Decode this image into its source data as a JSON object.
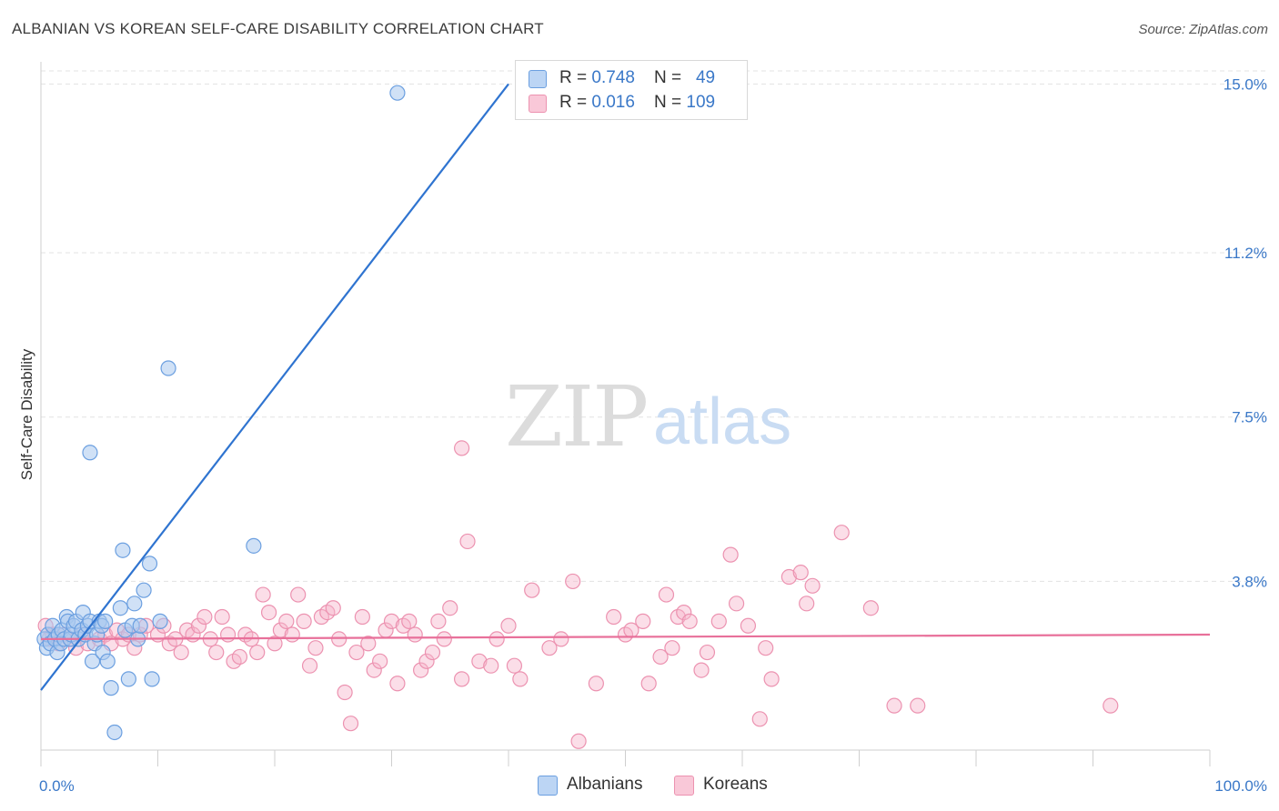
{
  "title": "ALBANIAN VS KOREAN SELF-CARE DISABILITY CORRELATION CHART",
  "source": "Source: ZipAtlas.com",
  "watermark": {
    "zip": "ZIP",
    "atlas": "atlas"
  },
  "legend_top": [
    {
      "r_label": "R = ",
      "r_value": "0.748",
      "n_label": "N = ",
      "n_value": "49"
    },
    {
      "r_label": "R = ",
      "r_value": "0.016",
      "n_label": "N = ",
      "n_value": "109"
    }
  ],
  "colors": {
    "albanian_fill": "#a9c8ef",
    "albanian_stroke": "#6b9fe0",
    "albanian_line": "#2f74d0",
    "korean_fill": "#f6b6cb",
    "korean_stroke": "#ec92b0",
    "korean_line": "#e8709a",
    "value_text": "#3a78c8",
    "grid": "#e3e3e3"
  },
  "chart_data": {
    "type": "scatter",
    "title": "ALBANIAN VS KOREAN SELF-CARE DISABILITY CORRELATION CHART",
    "xlabel": "",
    "ylabel": "Self-Care Disability",
    "x_tick_labels": [
      "0.0%",
      "100.0%"
    ],
    "y_tick_labels": [
      "3.8%",
      "7.5%",
      "11.2%",
      "15.0%"
    ],
    "y_ticks": [
      3.8,
      7.5,
      11.2,
      15.0
    ],
    "xlim": [
      0,
      100
    ],
    "ylim": [
      0,
      15.5
    ],
    "grid": true,
    "legend_position": "bottom",
    "series": [
      {
        "name": "Albanians",
        "r": 0.748,
        "n": 49,
        "trend": {
          "x0": 0,
          "y0": 1.35,
          "x1": 40,
          "y1": 15.0
        },
        "points": [
          [
            0.3,
            2.5
          ],
          [
            0.5,
            2.3
          ],
          [
            0.6,
            2.6
          ],
          [
            0.8,
            2.4
          ],
          [
            1.0,
            2.8
          ],
          [
            1.2,
            2.5
          ],
          [
            1.4,
            2.2
          ],
          [
            1.5,
            2.6
          ],
          [
            1.7,
            2.4
          ],
          [
            1.8,
            2.7
          ],
          [
            2.0,
            2.5
          ],
          [
            2.2,
            3.0
          ],
          [
            2.3,
            2.9
          ],
          [
            2.5,
            2.5
          ],
          [
            2.6,
            2.6
          ],
          [
            2.8,
            2.8
          ],
          [
            3.0,
            2.9
          ],
          [
            3.2,
            2.5
          ],
          [
            3.5,
            2.7
          ],
          [
            3.6,
            3.1
          ],
          [
            3.8,
            2.6
          ],
          [
            4.0,
            2.8
          ],
          [
            4.2,
            2.9
          ],
          [
            4.4,
            2.0
          ],
          [
            4.6,
            2.4
          ],
          [
            4.8,
            2.6
          ],
          [
            5.0,
            2.9
          ],
          [
            5.2,
            2.8
          ],
          [
            5.3,
            2.2
          ],
          [
            5.5,
            2.9
          ],
          [
            5.7,
            2.0
          ],
          [
            6.0,
            1.4
          ],
          [
            6.3,
            0.4
          ],
          [
            6.8,
            3.2
          ],
          [
            7.0,
            4.5
          ],
          [
            7.2,
            2.7
          ],
          [
            7.5,
            1.6
          ],
          [
            7.8,
            2.8
          ],
          [
            8.0,
            3.3
          ],
          [
            8.3,
            2.5
          ],
          [
            8.5,
            2.8
          ],
          [
            8.8,
            3.6
          ],
          [
            9.3,
            4.2
          ],
          [
            9.5,
            1.6
          ],
          [
            10.2,
            2.9
          ],
          [
            10.9,
            8.6
          ],
          [
            18.2,
            4.6
          ],
          [
            4.2,
            6.7
          ],
          [
            30.5,
            14.8
          ]
        ]
      },
      {
        "name": "Koreans",
        "r": 0.016,
        "n": 109,
        "trend": {
          "x0": 0,
          "y0": 2.5,
          "x1": 100,
          "y1": 2.6
        },
        "points": [
          [
            0.4,
            2.8
          ],
          [
            0.7,
            2.5
          ],
          [
            1.0,
            2.6
          ],
          [
            1.5,
            2.4
          ],
          [
            2.0,
            2.6
          ],
          [
            2.5,
            2.5
          ],
          [
            3.0,
            2.3
          ],
          [
            3.5,
            2.6
          ],
          [
            4.0,
            2.4
          ],
          [
            5.0,
            2.5
          ],
          [
            5.5,
            2.6
          ],
          [
            6.0,
            2.4
          ],
          [
            6.5,
            2.7
          ],
          [
            7.0,
            2.5
          ],
          [
            7.5,
            2.6
          ],
          [
            8.0,
            2.3
          ],
          [
            8.5,
            2.6
          ],
          [
            9.0,
            2.8
          ],
          [
            10.0,
            2.6
          ],
          [
            10.5,
            2.8
          ],
          [
            11.0,
            2.4
          ],
          [
            11.5,
            2.5
          ],
          [
            12.0,
            2.2
          ],
          [
            12.5,
            2.7
          ],
          [
            13.0,
            2.6
          ],
          [
            13.5,
            2.8
          ],
          [
            14.0,
            3.0
          ],
          [
            14.5,
            2.5
          ],
          [
            15.0,
            2.2
          ],
          [
            15.5,
            3.0
          ],
          [
            16.0,
            2.6
          ],
          [
            16.5,
            2.0
          ],
          [
            17.0,
            2.1
          ],
          [
            17.5,
            2.6
          ],
          [
            18.0,
            2.5
          ],
          [
            18.5,
            2.2
          ],
          [
            19.0,
            3.5
          ],
          [
            19.5,
            3.1
          ],
          [
            20.0,
            2.4
          ],
          [
            20.5,
            2.7
          ],
          [
            21.0,
            2.9
          ],
          [
            21.5,
            2.6
          ],
          [
            22.0,
            3.5
          ],
          [
            22.5,
            2.9
          ],
          [
            23.0,
            1.9
          ],
          [
            23.5,
            2.3
          ],
          [
            24.0,
            3.0
          ],
          [
            24.5,
            3.1
          ],
          [
            25.0,
            3.2
          ],
          [
            25.5,
            2.5
          ],
          [
            26.0,
            1.3
          ],
          [
            26.5,
            0.6
          ],
          [
            27.0,
            2.2
          ],
          [
            27.5,
            3.0
          ],
          [
            28.0,
            2.4
          ],
          [
            28.5,
            1.8
          ],
          [
            29.0,
            2.0
          ],
          [
            29.5,
            2.7
          ],
          [
            30.0,
            2.9
          ],
          [
            30.5,
            1.5
          ],
          [
            31.0,
            2.8
          ],
          [
            31.5,
            2.9
          ],
          [
            32.0,
            2.6
          ],
          [
            32.5,
            1.8
          ],
          [
            33.0,
            2.0
          ],
          [
            33.5,
            2.2
          ],
          [
            34.0,
            2.9
          ],
          [
            34.5,
            2.5
          ],
          [
            35.0,
            3.2
          ],
          [
            36.0,
            1.6
          ],
          [
            36.5,
            4.7
          ],
          [
            37.5,
            2.0
          ],
          [
            38.5,
            1.9
          ],
          [
            39.0,
            2.5
          ],
          [
            40.0,
            2.8
          ],
          [
            40.5,
            1.9
          ],
          [
            41.0,
            1.6
          ],
          [
            42.0,
            3.6
          ],
          [
            43.5,
            2.3
          ],
          [
            44.5,
            2.5
          ],
          [
            45.5,
            3.8
          ],
          [
            46.0,
            0.2
          ],
          [
            47.5,
            1.5
          ],
          [
            49.0,
            3.0
          ],
          [
            50.0,
            2.6
          ],
          [
            50.5,
            2.7
          ],
          [
            51.5,
            2.9
          ],
          [
            52.0,
            1.5
          ],
          [
            53.0,
            2.1
          ],
          [
            53.5,
            3.5
          ],
          [
            54.0,
            2.3
          ],
          [
            54.5,
            3.0
          ],
          [
            55.0,
            3.1
          ],
          [
            55.5,
            2.9
          ],
          [
            56.5,
            1.8
          ],
          [
            57.0,
            2.2
          ],
          [
            58.0,
            2.9
          ],
          [
            59.0,
            4.4
          ],
          [
            59.5,
            3.3
          ],
          [
            60.5,
            2.8
          ],
          [
            61.5,
            0.7
          ],
          [
            62.0,
            2.3
          ],
          [
            62.5,
            1.6
          ],
          [
            64.0,
            3.9
          ],
          [
            65.0,
            4.0
          ],
          [
            65.5,
            3.3
          ],
          [
            66.0,
            3.7
          ],
          [
            68.5,
            4.9
          ],
          [
            71.0,
            3.2
          ],
          [
            73.0,
            1.0
          ],
          [
            75.0,
            1.0
          ],
          [
            91.5,
            1.0
          ],
          [
            36.0,
            6.8
          ]
        ]
      }
    ]
  },
  "legend_bottom": [
    "Albanians",
    "Koreans"
  ]
}
